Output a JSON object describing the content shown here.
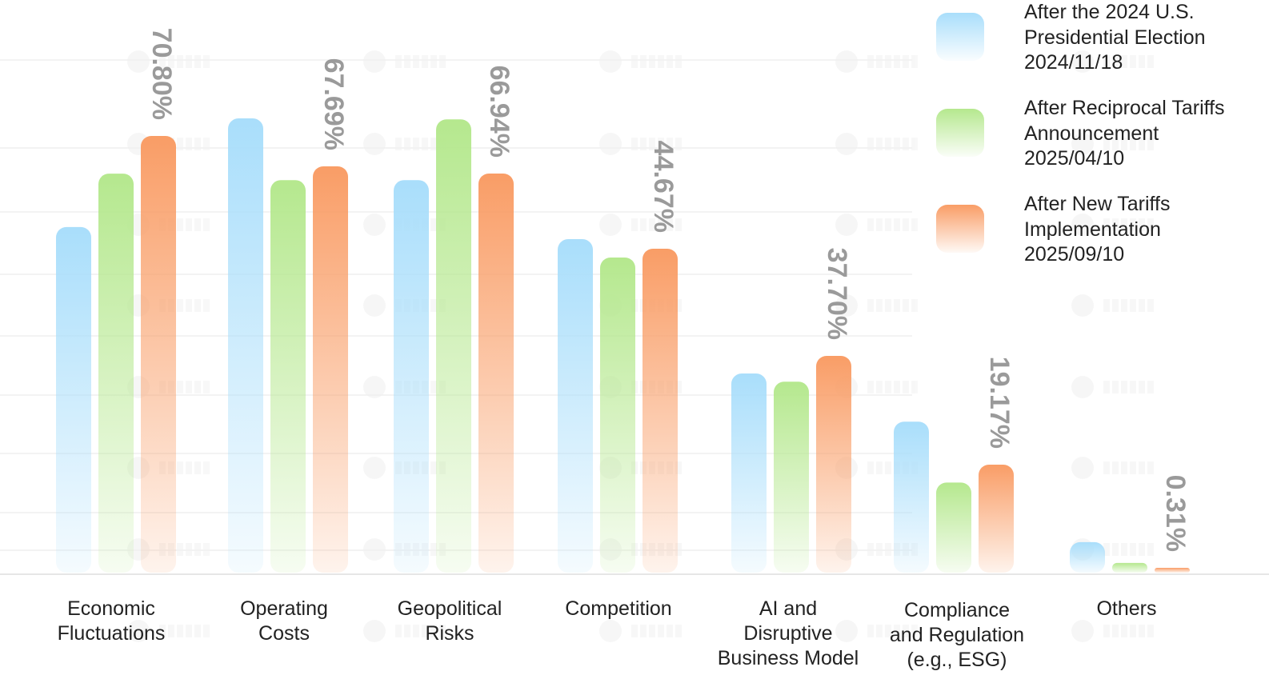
{
  "watermark": "TAITRA",
  "chart_data": {
    "type": "bar",
    "categories": [
      "Economic\nFluctuations",
      "Operating\nCosts",
      "Geopolitical\nRisks",
      "Competition",
      "AI and\nDisruptive\nBusiness Model",
      "Compliance\nand Regulation\n(e.g., ESG)",
      "Others"
    ],
    "series": [
      {
        "name": "After the 2024 U.S.\nPresidential Election\n2024/11/18",
        "color": "#a9defb",
        "values": [
          51.1,
          72.6,
          65.0,
          47.5,
          34.7,
          26.5,
          5.0
        ]
      },
      {
        "name": "After Reciprocal Tariffs\nAnnouncement\n2025/04/10",
        "color": "#b5e88e",
        "values": [
          66.9,
          65.0,
          72.5,
          44.1,
          33.3,
          15.9,
          1.2
        ]
      },
      {
        "name": "After New Tariffs\nImplementation\n 2025/09/10",
        "color": "#f99d66",
        "values": [
          70.8,
          67.69,
          66.94,
          44.67,
          37.7,
          19.17,
          0.31
        ]
      }
    ],
    "data_labels": [
      "70.80%",
      "67.69%",
      "66.94%",
      "44.67%",
      "37.70%",
      "19.17%",
      "0.31%"
    ],
    "labeled_series": 2,
    "legend_position": "top-right",
    "grid": true,
    "title": "",
    "xlabel": "",
    "ylabel": ""
  }
}
